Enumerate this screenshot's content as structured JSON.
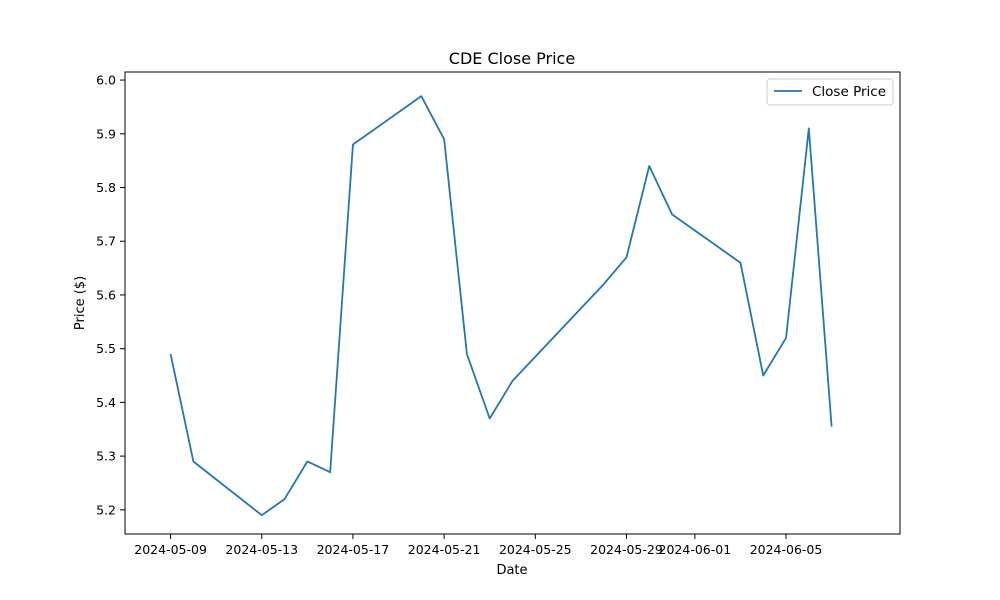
{
  "chart_data": {
    "type": "line",
    "title": "CDE Close Price",
    "xlabel": "Date",
    "ylabel": "Price ($)",
    "legend_position": "top-right",
    "grid": false,
    "series_color": "#1f77b4",
    "xlim": [
      "2024-05-07",
      "2024-06-10"
    ],
    "ylim": [
      5.155,
      6.015
    ],
    "x_ticks": [
      "2024-05-09",
      "2024-05-13",
      "2024-05-17",
      "2024-05-21",
      "2024-05-25",
      "2024-05-29",
      "2024-06-01",
      "2024-06-05"
    ],
    "y_ticks": [
      "5.2",
      "5.3",
      "5.4",
      "5.5",
      "5.6",
      "5.7",
      "5.8",
      "5.9",
      "6.0"
    ],
    "series": [
      {
        "name": "Close Price",
        "x": [
          "2024-05-09",
          "2024-05-10",
          "2024-05-13",
          "2024-05-14",
          "2024-05-15",
          "2024-05-16",
          "2024-05-17",
          "2024-05-20",
          "2024-05-21",
          "2024-05-22",
          "2024-05-23",
          "2024-05-24",
          "2024-05-28",
          "2024-05-29",
          "2024-05-30",
          "2024-05-31",
          "2024-06-03",
          "2024-06-04",
          "2024-06-05",
          "2024-06-06",
          "2024-06-07"
        ],
        "values": [
          5.49,
          5.29,
          5.19,
          5.22,
          5.29,
          5.27,
          5.88,
          5.97,
          5.89,
          5.49,
          5.37,
          5.44,
          5.62,
          5.67,
          5.84,
          5.75,
          5.66,
          5.45,
          5.52,
          5.91,
          5.355
        ]
      }
    ]
  }
}
